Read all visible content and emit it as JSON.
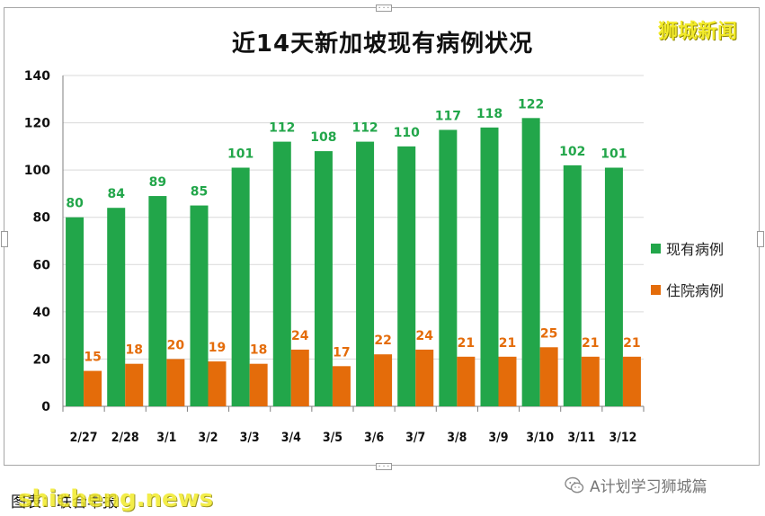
{
  "header": {
    "title": "近14天新加坡现有病例状况",
    "watermark": "狮城新闻"
  },
  "footer": {
    "source_label": "图表：联合早报",
    "watermark": "shicheng.news",
    "wechat_text": "A计划学习狮城篇"
  },
  "colors": {
    "current": "#22a64a",
    "hospitalised": "#e46c0a",
    "current_label": "#22a64a",
    "hospitalised_label": "#e46c0a"
  },
  "chart_data": {
    "type": "bar",
    "title": "近14天新加坡现有病例状况",
    "categories": [
      "2/27",
      "2/28",
      "3/1",
      "3/2",
      "3/3",
      "3/4",
      "3/5",
      "3/6",
      "3/7",
      "3/8",
      "3/9",
      "3/10",
      "3/11",
      "3/12"
    ],
    "series": [
      {
        "name": "现有病例",
        "values": [
          80,
          84,
          89,
          85,
          101,
          112,
          108,
          112,
          110,
          117,
          118,
          122,
          102,
          101
        ]
      },
      {
        "name": "住院病例",
        "values": [
          15,
          18,
          20,
          19,
          18,
          24,
          17,
          22,
          24,
          21,
          21,
          25,
          21,
          21
        ]
      }
    ],
    "ylim": [
      0,
      140
    ],
    "yticks": [
      0,
      20,
      40,
      60,
      80,
      100,
      120,
      140
    ],
    "grid": true,
    "legend": "right",
    "xlabel": "",
    "ylabel": ""
  }
}
